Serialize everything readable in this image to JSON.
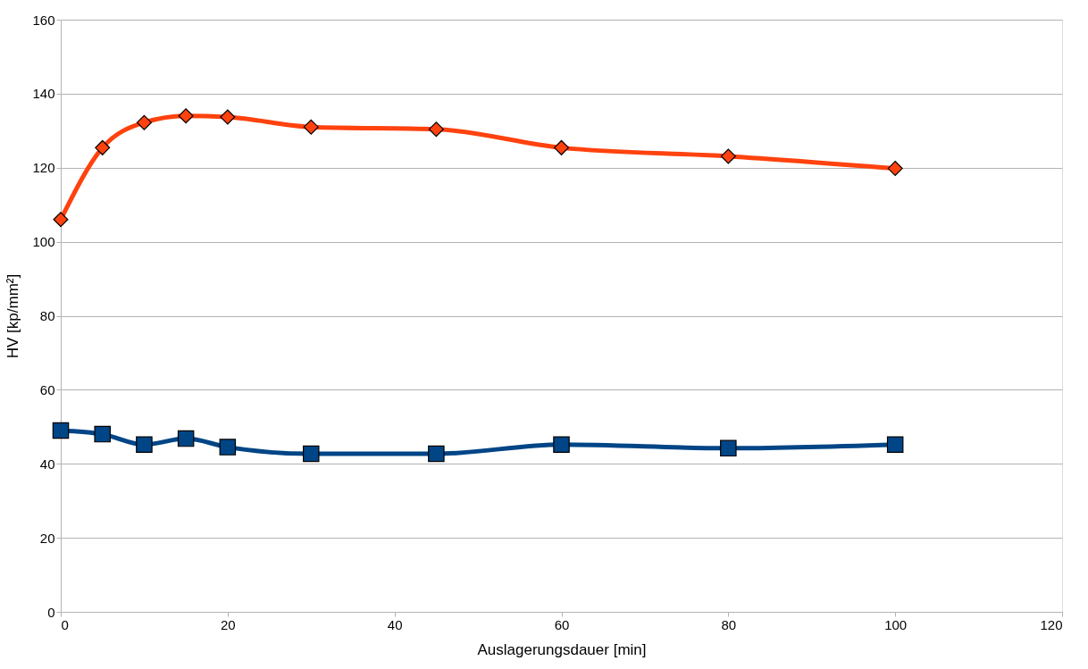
{
  "chart_data": {
    "type": "line",
    "xlabel": "Auslagerungsdauer [min]",
    "ylabel": "HV [kp/mm²]",
    "x": [
      0,
      5,
      10,
      15,
      20,
      30,
      45,
      60,
      80,
      100
    ],
    "series": [
      {
        "color": "#ff420e",
        "marker": "diamond",
        "values": [
          106,
          125.4,
          132.2,
          134,
          133.7,
          131,
          130.4,
          125.4,
          123.1,
          119.8
        ]
      },
      {
        "color": "#004586",
        "marker": "square",
        "values": [
          49,
          48,
          45.2,
          46.8,
          44.5,
          42.7,
          42.7,
          45.2,
          44.2,
          45.2
        ]
      }
    ],
    "xlim": [
      0,
      120
    ],
    "xticks": [
      0,
      20,
      40,
      60,
      80,
      100,
      120
    ],
    "ylim": [
      0,
      160
    ],
    "yticks": [
      0,
      20,
      40,
      60,
      80,
      100,
      120,
      140,
      160
    ],
    "grid": "y",
    "line_style": "solid"
  }
}
